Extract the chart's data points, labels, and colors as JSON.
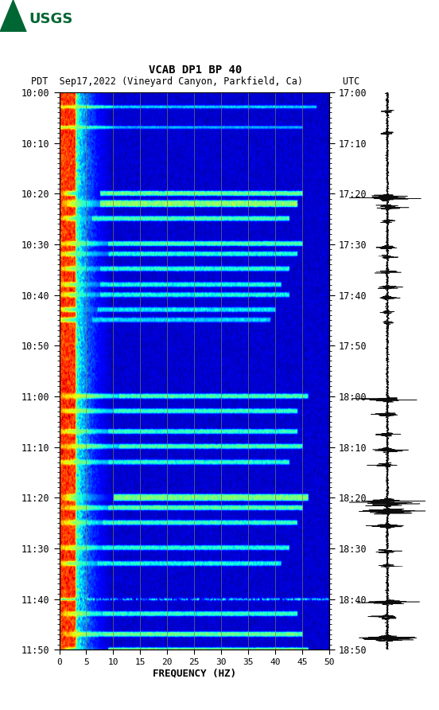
{
  "title_line1": "VCAB DP1 BP 40",
  "title_line2": "PDT  Sep17,2022 (Vineyard Canyon, Parkfield, Ca)       UTC",
  "xlabel": "FREQUENCY (HZ)",
  "freq_min": 0,
  "freq_max": 50,
  "freq_ticks": [
    0,
    5,
    10,
    15,
    20,
    25,
    30,
    35,
    40,
    45,
    50
  ],
  "time_labels_left": [
    "10:00",
    "10:10",
    "10:20",
    "10:30",
    "10:40",
    "10:50",
    "11:00",
    "11:10",
    "11:20",
    "11:30",
    "11:40",
    "11:50"
  ],
  "time_labels_right": [
    "17:00",
    "17:10",
    "17:20",
    "17:30",
    "17:40",
    "17:50",
    "18:00",
    "18:10",
    "18:20",
    "18:30",
    "18:40",
    "18:50"
  ],
  "n_time_rows": 600,
  "n_freq_cols": 400,
  "background_color": "#ffffff",
  "vline_color": "#7a7a50",
  "vline_freqs": [
    5,
    10,
    15,
    20,
    25,
    30,
    35,
    40,
    45
  ],
  "seed": 7
}
